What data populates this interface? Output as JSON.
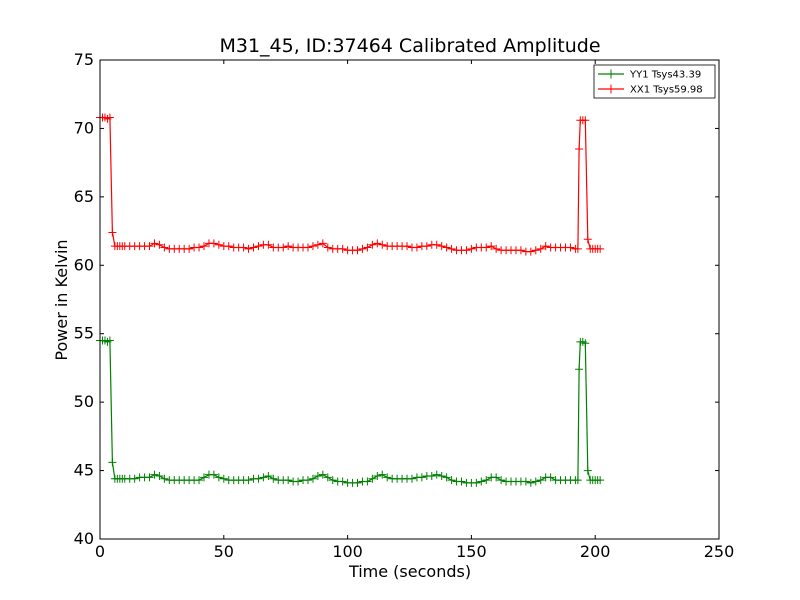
{
  "chart_data": {
    "type": "line",
    "title": "M31_45, ID:37464 Calibrated Amplitude",
    "xlabel": "Time (seconds)",
    "ylabel": "Power in Kelvin",
    "xlim": [
      0,
      250
    ],
    "ylim": [
      40,
      75
    ],
    "xticks": [
      0,
      50,
      100,
      150,
      200,
      250
    ],
    "yticks": [
      40,
      45,
      50,
      55,
      60,
      65,
      70,
      75
    ],
    "grid": false,
    "legend_position": "top-right",
    "series": [
      {
        "name": "YY1 Tsys43.39",
        "color": "#008000",
        "x": [
          0,
          1,
          2,
          3,
          4,
          5,
          6,
          7,
          8,
          9,
          10,
          12,
          14,
          16,
          18,
          20,
          22,
          24,
          26,
          28,
          30,
          32,
          34,
          36,
          38,
          40,
          42,
          44,
          46,
          48,
          50,
          52,
          54,
          56,
          58,
          60,
          62,
          64,
          66,
          68,
          70,
          72,
          74,
          76,
          78,
          80,
          82,
          84,
          86,
          88,
          90,
          92,
          94,
          96,
          98,
          100,
          102,
          104,
          106,
          108,
          110,
          112,
          114,
          116,
          118,
          120,
          122,
          124,
          126,
          128,
          130,
          132,
          134,
          136,
          138,
          140,
          142,
          144,
          146,
          148,
          150,
          152,
          154,
          156,
          158,
          160,
          162,
          164,
          166,
          168,
          170,
          172,
          174,
          176,
          178,
          180,
          182,
          184,
          186,
          188,
          190,
          192,
          193,
          193.5,
          194,
          195,
          196,
          197,
          198,
          199,
          200,
          201,
          202
        ],
        "y": [
          54.5,
          54.5,
          54.5,
          54.4,
          54.5,
          45.6,
          44.4,
          44.4,
          44.4,
          44.4,
          44.4,
          44.4,
          44.4,
          44.5,
          44.5,
          44.5,
          44.7,
          44.6,
          44.4,
          44.3,
          44.3,
          44.3,
          44.3,
          44.3,
          44.3,
          44.3,
          44.5,
          44.7,
          44.7,
          44.5,
          44.4,
          44.3,
          44.3,
          44.3,
          44.3,
          44.3,
          44.4,
          44.4,
          44.5,
          44.6,
          44.4,
          44.3,
          44.3,
          44.3,
          44.2,
          44.2,
          44.3,
          44.3,
          44.4,
          44.6,
          44.7,
          44.5,
          44.3,
          44.2,
          44.2,
          44.1,
          44.1,
          44.1,
          44.2,
          44.2,
          44.4,
          44.6,
          44.7,
          44.5,
          44.4,
          44.4,
          44.4,
          44.4,
          44.4,
          44.5,
          44.5,
          44.6,
          44.6,
          44.7,
          44.6,
          44.5,
          44.3,
          44.2,
          44.2,
          44.1,
          44.1,
          44.1,
          44.2,
          44.3,
          44.5,
          44.5,
          44.3,
          44.2,
          44.2,
          44.2,
          44.2,
          44.2,
          44.1,
          44.2,
          44.3,
          44.5,
          44.5,
          44.3,
          44.3,
          44.3,
          44.3,
          44.3,
          44.3,
          52.4,
          54.4,
          54.4,
          54.3,
          45.0,
          44.3,
          44.3,
          44.3,
          44.3,
          44.3
        ]
      },
      {
        "name": "XX1 Tsys59.98",
        "color": "#ff0000",
        "x": [
          0,
          1,
          2,
          3,
          4,
          5,
          6,
          7,
          8,
          9,
          10,
          12,
          14,
          16,
          18,
          20,
          22,
          24,
          26,
          28,
          30,
          32,
          34,
          36,
          38,
          40,
          42,
          44,
          46,
          48,
          50,
          52,
          54,
          56,
          58,
          60,
          62,
          64,
          66,
          68,
          70,
          72,
          74,
          76,
          78,
          80,
          82,
          84,
          86,
          88,
          90,
          92,
          94,
          96,
          98,
          100,
          102,
          104,
          106,
          108,
          110,
          112,
          114,
          116,
          118,
          120,
          122,
          124,
          126,
          128,
          130,
          132,
          134,
          136,
          138,
          140,
          142,
          144,
          146,
          148,
          150,
          152,
          154,
          156,
          158,
          160,
          162,
          164,
          166,
          168,
          170,
          172,
          174,
          176,
          178,
          180,
          182,
          184,
          186,
          188,
          190,
          192,
          193,
          193.5,
          194,
          195,
          196,
          197,
          198,
          199,
          200,
          201,
          202
        ],
        "y": [
          70.8,
          70.8,
          70.8,
          70.7,
          70.8,
          62.4,
          61.4,
          61.4,
          61.4,
          61.4,
          61.4,
          61.4,
          61.4,
          61.4,
          61.4,
          61.4,
          61.6,
          61.5,
          61.3,
          61.2,
          61.2,
          61.2,
          61.2,
          61.2,
          61.3,
          61.3,
          61.4,
          61.6,
          61.6,
          61.5,
          61.4,
          61.4,
          61.3,
          61.3,
          61.3,
          61.2,
          61.3,
          61.4,
          61.5,
          61.5,
          61.3,
          61.3,
          61.3,
          61.4,
          61.3,
          61.3,
          61.3,
          61.3,
          61.4,
          61.5,
          61.6,
          61.3,
          61.2,
          61.2,
          61.2,
          61.1,
          61.1,
          61.1,
          61.2,
          61.3,
          61.5,
          61.6,
          61.5,
          61.4,
          61.4,
          61.4,
          61.4,
          61.4,
          61.3,
          61.3,
          61.4,
          61.4,
          61.5,
          61.5,
          61.4,
          61.3,
          61.2,
          61.1,
          61.1,
          61.1,
          61.2,
          61.3,
          61.3,
          61.3,
          61.4,
          61.2,
          61.1,
          61.1,
          61.1,
          61.1,
          61.1,
          61.0,
          61.0,
          61.1,
          61.2,
          61.4,
          61.3,
          61.3,
          61.3,
          61.3,
          61.3,
          61.2,
          61.2,
          68.5,
          70.6,
          70.6,
          70.6,
          61.9,
          61.2,
          61.2,
          61.2,
          61.2,
          61.2
        ]
      }
    ]
  }
}
